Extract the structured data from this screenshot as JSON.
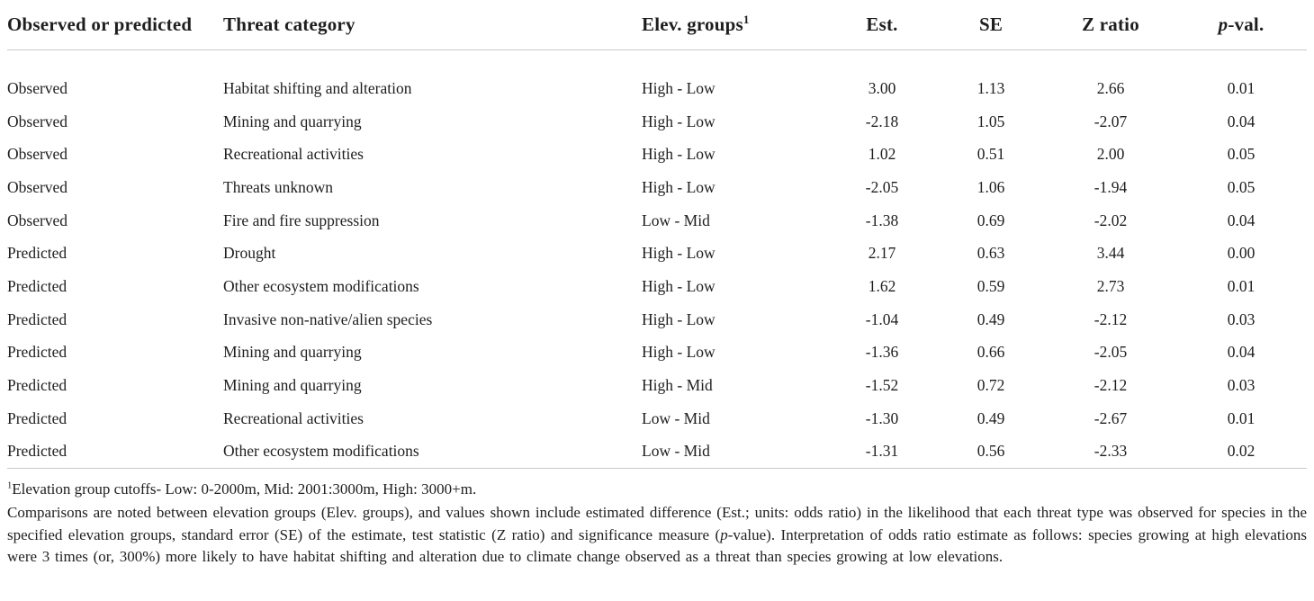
{
  "table": {
    "header": {
      "observed": "Observed or predicted",
      "threat": "Threat category",
      "elev": "Elev. groups",
      "elev_sup": "1",
      "est": "Est.",
      "se": "SE",
      "z": "Z ratio",
      "pval_italic": "p",
      "pval_rest": "-val."
    },
    "rows": [
      {
        "type": "Observed",
        "threat": "Habitat shifting and alteration",
        "elev": "High - Low",
        "est": "3.00",
        "se": "1.13",
        "z": "2.66",
        "p": "0.01"
      },
      {
        "type": "Observed",
        "threat": "Mining and quarrying",
        "elev": "High - Low",
        "est": "-2.18",
        "se": "1.05",
        "z": "-2.07",
        "p": "0.04"
      },
      {
        "type": "Observed",
        "threat": "Recreational activities",
        "elev": "High - Low",
        "est": "1.02",
        "se": "0.51",
        "z": "2.00",
        "p": "0.05"
      },
      {
        "type": "Observed",
        "threat": "Threats unknown",
        "elev": "High - Low",
        "est": "-2.05",
        "se": "1.06",
        "z": "-1.94",
        "p": "0.05"
      },
      {
        "type": "Observed",
        "threat": "Fire and fire suppression",
        "elev": "Low - Mid",
        "est": "-1.38",
        "se": "0.69",
        "z": "-2.02",
        "p": "0.04"
      },
      {
        "type": "Predicted",
        "threat": "Drought",
        "elev": "High - Low",
        "est": "2.17",
        "se": "0.63",
        "z": "3.44",
        "p": "0.00"
      },
      {
        "type": "Predicted",
        "threat": "Other ecosystem modifications",
        "elev": "High - Low",
        "est": "1.62",
        "se": "0.59",
        "z": "2.73",
        "p": "0.01"
      },
      {
        "type": "Predicted",
        "threat": "Invasive non-native/alien species",
        "elev": "High - Low",
        "est": "-1.04",
        "se": "0.49",
        "z": "-2.12",
        "p": "0.03"
      },
      {
        "type": "Predicted",
        "threat": "Mining and quarrying",
        "elev": "High - Low",
        "est": "-1.36",
        "se": "0.66",
        "z": "-2.05",
        "p": "0.04"
      },
      {
        "type": "Predicted",
        "threat": "Mining and quarrying",
        "elev": "High - Mid",
        "est": "-1.52",
        "se": "0.72",
        "z": "-2.12",
        "p": "0.03"
      },
      {
        "type": "Predicted",
        "threat": "Recreational activities",
        "elev": "Low - Mid",
        "est": "-1.30",
        "se": "0.49",
        "z": "-2.67",
        "p": "0.01"
      },
      {
        "type": "Predicted",
        "threat": "Other ecosystem modifications",
        "elev": "Low - Mid",
        "est": "-1.31",
        "se": "0.56",
        "z": "-2.33",
        "p": "0.02"
      }
    ]
  },
  "footnotes": {
    "fn1_sup": "1",
    "fn1_text": "Elevation group cutoffs- Low: 0-2000m, Mid: 2001:3000m, High: 3000+m.",
    "caption_segments": [
      {
        "text": "Comparisons are noted between elevation groups (Elev. groups), and values shown include estimated difference (Est.; units: odds ratio) in the likelihood that each threat type was observed for species in the specified elevation groups, standard error (SE) of the estimate, test statistic (Z ratio) and significance measure (",
        "italic": false
      },
      {
        "text": "p",
        "italic": true
      },
      {
        "text": "-value). Interpretation of odds ratio estimate as follows: species growing at high elevations were 3 times (or, 300%) more likely to have habitat shifting and alteration due to climate change observed as a threat than species growing at low elevations.",
        "italic": false
      }
    ]
  },
  "colors": {
    "text": "#1e1e1e",
    "rule": "#c9c9c9",
    "background": "#ffffff"
  }
}
